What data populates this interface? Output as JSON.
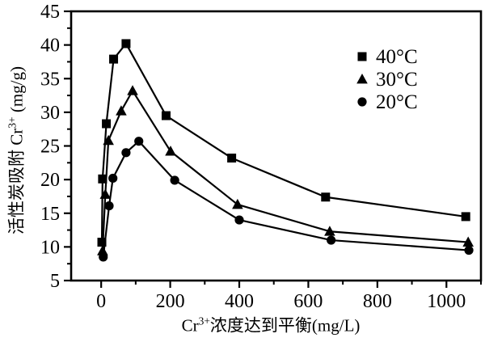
{
  "figure": {
    "background": "#ffffff",
    "ink_color": "#000000"
  },
  "chart_data": {
    "type": "line",
    "title": "",
    "xlabel": {
      "prefix": "Cr",
      "sup": "3+",
      "suffix": "浓度达到平衡(mg/L)"
    },
    "ylabel": {
      "prefix": "活性炭吸附 Cr",
      "sup": "3+",
      "suffix": " (mg/g)"
    },
    "xlim": [
      -87,
      1100
    ],
    "ylim": [
      5,
      45
    ],
    "x_major_ticks": [
      0,
      200,
      400,
      600,
      800,
      1000
    ],
    "x_minor_ticks": [
      100,
      300,
      500,
      700,
      900,
      1100
    ],
    "y_major_ticks": [
      5,
      10,
      15,
      20,
      25,
      30,
      35,
      40,
      45
    ],
    "y_minor_ticks": [
      7.5,
      12.5,
      17.5,
      22.5,
      27.5,
      32.5,
      37.5,
      42.5
    ],
    "grid": false,
    "legend_position": "top-right",
    "series": [
      {
        "name": "40°C",
        "marker": "square",
        "color": "#000000",
        "points": [
          [
            2,
            10.7
          ],
          [
            4,
            20.1
          ],
          [
            15,
            28.3
          ],
          [
            36,
            37.9
          ],
          [
            72,
            40.2
          ],
          [
            188,
            29.5
          ],
          [
            378,
            23.2
          ],
          [
            650,
            17.4
          ],
          [
            1056,
            14.5
          ]
        ]
      },
      {
        "name": "30°C",
        "marker": "triangle",
        "color": "#000000",
        "points": [
          [
            4,
            9.4
          ],
          [
            12,
            17.8
          ],
          [
            21,
            25.8
          ],
          [
            58,
            30.2
          ],
          [
            91,
            33.2
          ],
          [
            201,
            24.2
          ],
          [
            395,
            16.3
          ],
          [
            662,
            12.3
          ],
          [
            1063,
            10.7
          ]
        ]
      },
      {
        "name": "20°C",
        "marker": "circle",
        "color": "#000000",
        "points": [
          [
            6,
            8.5
          ],
          [
            23,
            16.1
          ],
          [
            34,
            20.2
          ],
          [
            72,
            24.0
          ],
          [
            109,
            25.7
          ],
          [
            213,
            19.9
          ],
          [
            400,
            14.0
          ],
          [
            666,
            11.0
          ],
          [
            1065,
            9.5
          ]
        ]
      }
    ]
  }
}
